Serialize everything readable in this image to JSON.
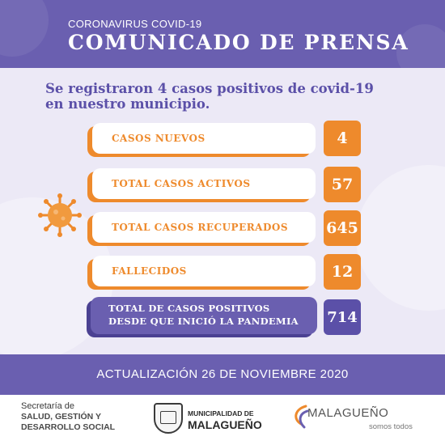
{
  "header": {
    "subtitle": "CORONAVIRUS COVID-19",
    "title": "COMUNICADO DE PRENSA"
  },
  "headline": {
    "line1": "Se registraron 4 casos positivos de covid-19",
    "line2": "en nuestro municipio."
  },
  "stats": [
    {
      "label": "CASOS NUEVOS",
      "value": "4"
    },
    {
      "label": "TOTAL CASOS ACTIVOS",
      "value": "57"
    },
    {
      "label": "TOTAL CASOS RECUPERADOS",
      "value": "645"
    },
    {
      "label": "FALLECIDOS",
      "value": "12"
    }
  ],
  "total": {
    "line1": "TOTAL DE CASOS POSITIVOS",
    "line2": "DESDE QUE INICIÓ LA PANDEMIA",
    "value": "714"
  },
  "update": "ACTUALIZACIÓN 26 DE NOVIEMBRE 2020",
  "footer": {
    "secretaria": {
      "line1": "Secretaría de",
      "line2": "SALUD, GESTIÓN Y",
      "line3": "DESARROLLO SOCIAL"
    },
    "municipalidad": {
      "line1": "MUNICIPALIDAD DE",
      "line2": "MALAGUEÑO"
    },
    "brand": {
      "name": "MALAGUEÑO",
      "tagline": "somos todos"
    }
  },
  "colors": {
    "purple": "#6a5fb0",
    "orange": "#ee8a2c",
    "background": "#ece9f6"
  },
  "icons": {
    "virus": "virus-icon",
    "crest": "municipal-crest-icon",
    "brand": "brand-swirl-icon"
  }
}
